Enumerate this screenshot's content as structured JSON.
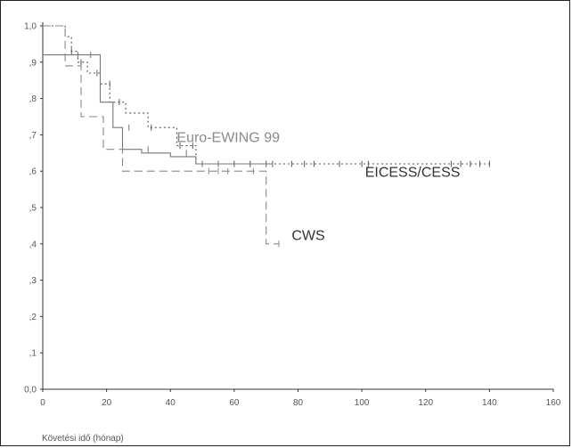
{
  "chart_data": {
    "type": "line",
    "title": "",
    "xlabel": "Követési idő (hónap)",
    "ylabel": "",
    "xlim": [
      0,
      160
    ],
    "ylim": [
      0,
      1.0
    ],
    "x_ticks": [
      "0",
      "20",
      "40",
      "60",
      "80",
      "100",
      "120",
      "140",
      "160"
    ],
    "y_ticks": [
      "0,0",
      ",1",
      ",2",
      ",3",
      ",4",
      ",5",
      ",6",
      ",7",
      ",8",
      ",9",
      "1,0"
    ],
    "grid": false,
    "annotations": [
      {
        "text": "Euro-EWING 99",
        "x": 42,
        "y": 0.68,
        "tone": "light"
      },
      {
        "text": "EICESS/CESS",
        "x": 101,
        "y": 0.585,
        "tone": "dark"
      },
      {
        "text": "CWS",
        "x": 78,
        "y": 0.41,
        "tone": "dark"
      }
    ],
    "series": [
      {
        "style": "dotted",
        "color": "#555555",
        "x": [
          0,
          7,
          7,
          9,
          9,
          11,
          11,
          14,
          14,
          18,
          18,
          21,
          21,
          26,
          26,
          33,
          33,
          42,
          42,
          48,
          48,
          140
        ],
        "y": [
          1.0,
          1.0,
          0.97,
          0.97,
          0.93,
          0.93,
          0.9,
          0.9,
          0.87,
          0.87,
          0.84,
          0.84,
          0.79,
          0.79,
          0.76,
          0.76,
          0.72,
          0.72,
          0.67,
          0.67,
          0.62,
          0.62
        ],
        "censored_x": [
          9,
          12,
          17,
          21,
          24,
          34,
          43,
          47,
          50,
          55,
          60,
          65,
          70,
          72,
          78,
          82,
          85,
          93,
          100,
          102,
          128,
          131,
          134,
          137,
          140
        ],
        "censored_y": [
          0.93,
          0.9,
          0.87,
          0.84,
          0.79,
          0.72,
          0.67,
          0.67,
          0.62,
          0.62,
          0.62,
          0.62,
          0.62,
          0.62,
          0.62,
          0.62,
          0.62,
          0.62,
          0.62,
          0.62,
          0.62,
          0.62,
          0.62,
          0.62,
          0.62
        ]
      },
      {
        "style": "solid",
        "color": "#777777",
        "x": [
          0,
          18,
          18,
          22,
          22,
          25,
          25,
          31,
          31,
          40,
          40,
          48,
          48,
          72
        ],
        "y": [
          0.92,
          0.92,
          0.79,
          0.79,
          0.72,
          0.72,
          0.66,
          0.66,
          0.65,
          0.65,
          0.64,
          0.64,
          0.62,
          0.62
        ],
        "censored_x": [
          11,
          15,
          27,
          33,
          45,
          50,
          55,
          60,
          65,
          72
        ],
        "censored_y": [
          0.92,
          0.92,
          0.72,
          0.66,
          0.65,
          0.62,
          0.62,
          0.62,
          0.62,
          0.62
        ]
      },
      {
        "style": "dashed",
        "color": "#888888",
        "x": [
          0,
          7,
          7,
          12,
          12,
          19,
          19,
          25,
          25,
          37,
          37,
          70,
          70,
          74
        ],
        "y": [
          1.0,
          1.0,
          0.89,
          0.89,
          0.75,
          0.75,
          0.66,
          0.66,
          0.6,
          0.6,
          0.6,
          0.6,
          0.4,
          0.4
        ],
        "censored_x": [
          52,
          55,
          58,
          66,
          74
        ],
        "censored_y": [
          0.6,
          0.6,
          0.6,
          0.6,
          0.4
        ]
      }
    ]
  }
}
